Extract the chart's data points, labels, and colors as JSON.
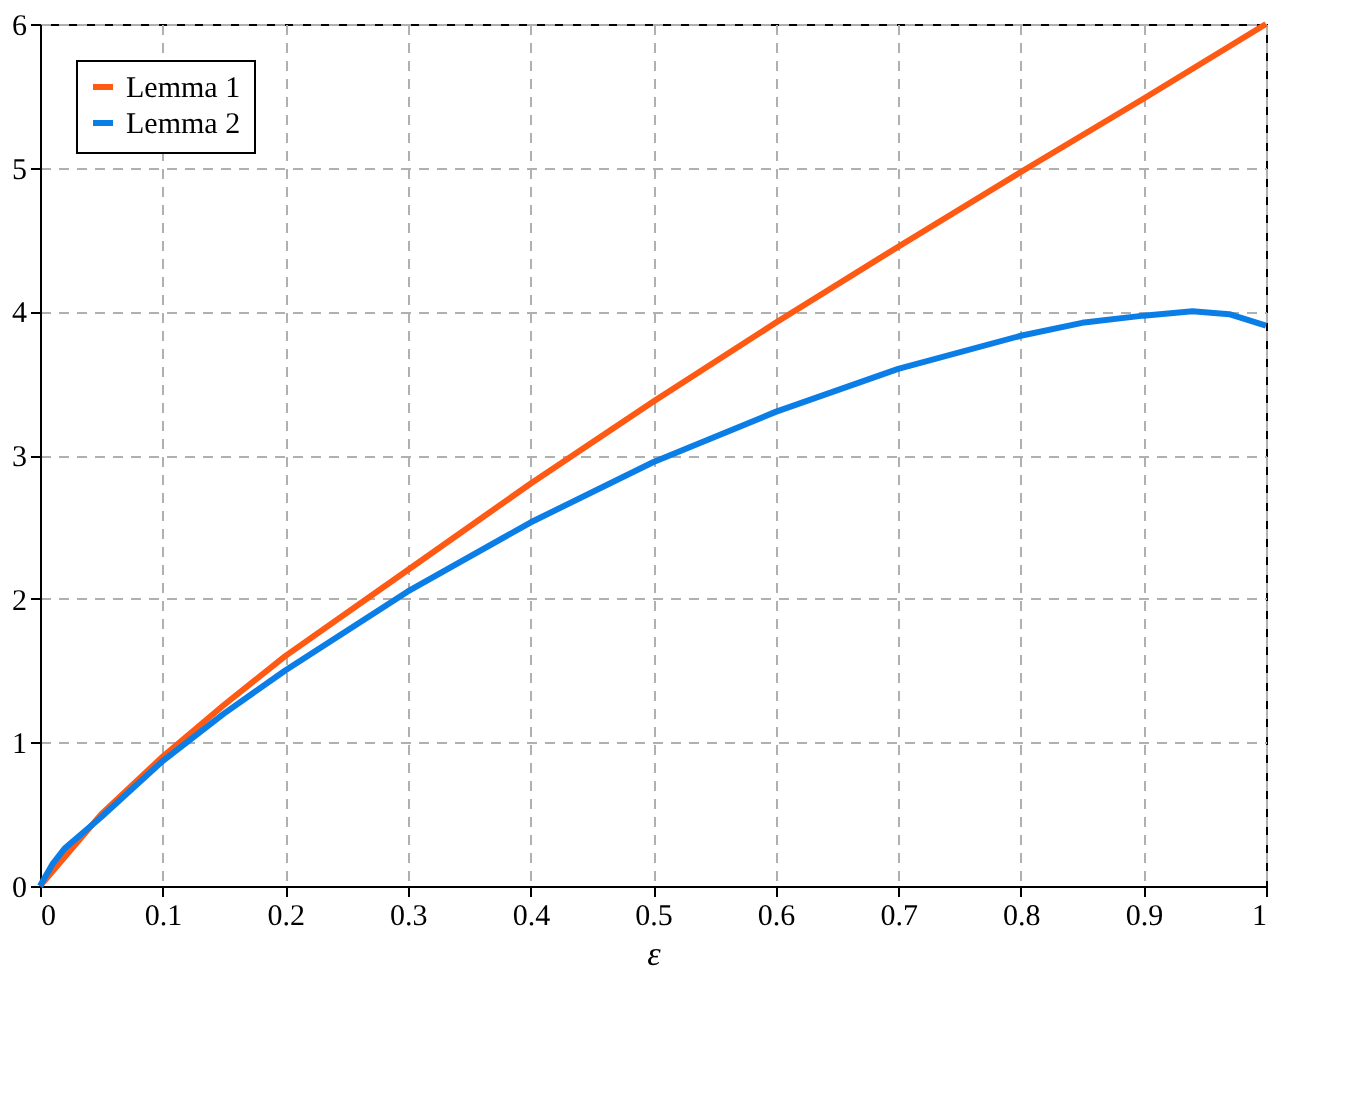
{
  "chart_data": {
    "type": "line",
    "xlabel": "ε",
    "xlim": [
      0,
      1
    ],
    "ylim": [
      0,
      6
    ],
    "xticks": [
      0,
      0.1,
      0.2,
      0.3,
      0.4,
      0.5,
      0.6,
      0.7,
      0.8,
      0.9,
      1
    ],
    "yticks": [
      0,
      1,
      2,
      3,
      4,
      5,
      6
    ],
    "grid": true,
    "legend": "top left",
    "line_style": "solid",
    "marker": "none",
    "series": [
      {
        "name": "Lemma 1",
        "color": "#ff5a14",
        "x": [
          0,
          0.05,
          0.1,
          0.15,
          0.2,
          0.3,
          0.4,
          0.5,
          0.6,
          0.7,
          0.8,
          0.9,
          1
        ],
        "values": [
          0,
          0.5,
          0.9,
          1.26,
          1.6,
          2.2,
          2.8,
          3.37,
          3.92,
          4.45,
          4.97,
          5.48,
          6
        ]
      },
      {
        "name": "Lemma 2",
        "color": "#0a7ee6",
        "x": [
          0,
          0.01,
          0.02,
          0.05,
          0.1,
          0.15,
          0.2,
          0.3,
          0.4,
          0.5,
          0.6,
          0.7,
          0.8,
          0.85,
          0.9,
          0.94,
          0.97,
          1
        ],
        "values": [
          0,
          0.15,
          0.26,
          0.48,
          0.87,
          1.2,
          1.5,
          2.05,
          2.53,
          2.95,
          3.3,
          3.6,
          3.83,
          3.92,
          3.97,
          4.0,
          3.98,
          3.9
        ]
      }
    ]
  }
}
